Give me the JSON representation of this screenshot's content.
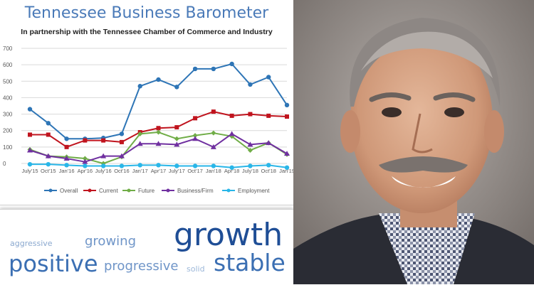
{
  "chart_data": {
    "type": "line",
    "title": "Tennessee Business Barometer",
    "subtitle": "In partnership with the Tennessee Chamber of Commerce and Industry",
    "categories": [
      "July'15",
      "Oct'15",
      "Jan'16",
      "Apr'16",
      "July'16",
      "Oct'16",
      "Jan'17",
      "Apr'17",
      "July'17",
      "Oct'17",
      "Jan'18",
      "Apr'18",
      "July'18",
      "Oct'18",
      "Jan'19"
    ],
    "ylim": [
      0,
      700
    ],
    "yticks": [
      0,
      100,
      200,
      300,
      400,
      500,
      600,
      700
    ],
    "grid": true,
    "legend_placement": "bottom",
    "series": [
      {
        "name": "Overall",
        "color": "#2e75b6",
        "values": [
          330,
          245,
          150,
          150,
          155,
          180,
          470,
          510,
          465,
          575,
          575,
          605,
          480,
          525,
          355
        ]
      },
      {
        "name": "Current",
        "color": "#c0141e",
        "values": [
          175,
          175,
          100,
          140,
          140,
          130,
          190,
          215,
          220,
          275,
          315,
          290,
          300,
          290,
          285
        ]
      },
      {
        "name": "Future",
        "color": "#70ad47",
        "values": [
          85,
          45,
          40,
          30,
          0,
          40,
          180,
          190,
          150,
          170,
          185,
          165,
          80,
          125,
          55
        ]
      },
      {
        "name": "Business/Firm",
        "color": "#7030a0",
        "values": [
          80,
          45,
          30,
          10,
          45,
          45,
          120,
          120,
          115,
          150,
          100,
          180,
          115,
          125,
          60
        ]
      },
      {
        "name": "Employment",
        "color": "#29b6e8",
        "values": [
          -5,
          -5,
          -10,
          -15,
          -15,
          -15,
          -10,
          -10,
          -15,
          -15,
          -15,
          -25,
          -15,
          -10,
          -25
        ]
      }
    ]
  },
  "word_cloud": {
    "words": [
      "aggressive",
      "growing",
      "growth",
      "positive",
      "progressive",
      "solid",
      "stable"
    ]
  },
  "colors": {
    "title": "#4a7ab8",
    "gridline": "#d9d9d9",
    "axis_text": "#595959"
  }
}
